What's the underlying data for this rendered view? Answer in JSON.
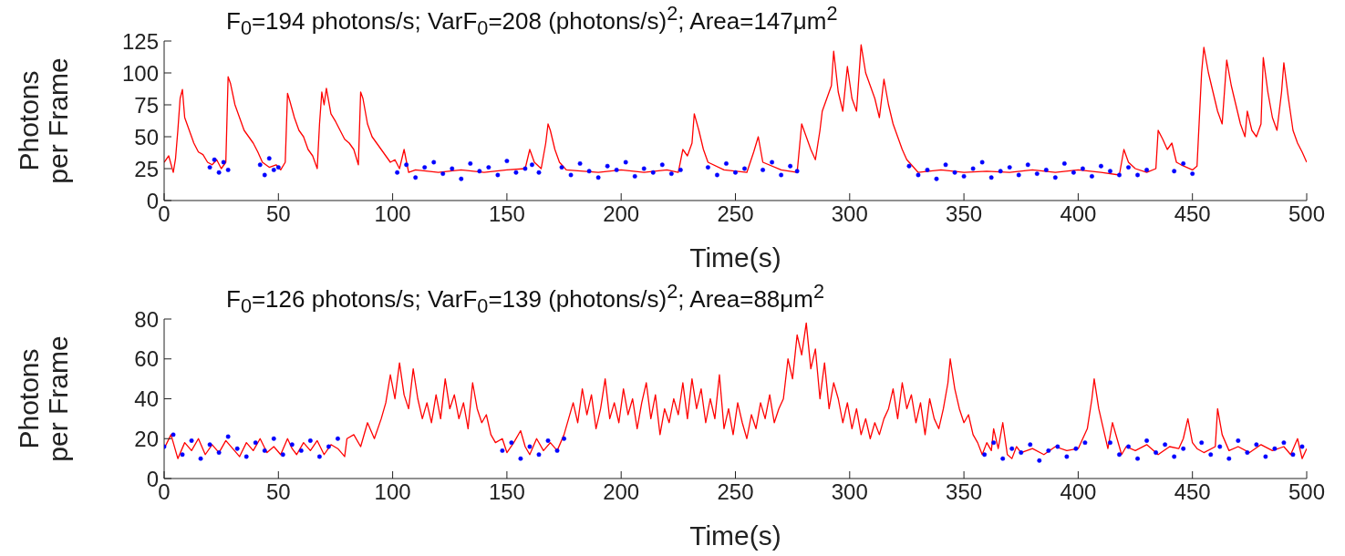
{
  "chart_data": [
    {
      "type": "line",
      "title": "F$_{0}$=194 photons/s; VarF$_{0}$=208 (photons/s)$^{2}$; Area=147μm$^{2}$",
      "xlabel": "Time(s)",
      "ylabel": "Photons per Frame",
      "xlim": [
        0,
        500
      ],
      "xticks": [
        0,
        50,
        100,
        150,
        200,
        250,
        300,
        350,
        400,
        450,
        500
      ],
      "ylim": [
        0,
        125
      ],
      "yticks": [
        0,
        25,
        50,
        75,
        100,
        125
      ],
      "grid": false,
      "series": [
        {
          "type": "line",
          "color": "#ff0000",
          "marker": "none",
          "x": [
            0,
            2,
            4,
            5,
            6,
            7,
            8,
            9,
            11,
            13,
            15,
            17,
            19,
            21,
            23,
            25,
            27,
            28,
            29,
            31,
            33,
            35,
            37,
            39,
            41,
            43,
            46,
            49,
            51,
            53,
            54,
            55,
            57,
            59,
            61,
            63,
            65,
            67,
            68,
            69,
            70,
            71,
            73,
            75,
            77,
            79,
            81,
            83,
            85,
            86,
            87,
            89,
            91,
            93,
            95,
            97,
            99,
            101,
            103,
            105,
            107,
            110,
            120,
            130,
            140,
            150,
            158,
            160,
            162,
            165,
            167,
            168,
            169,
            171,
            173,
            176,
            190,
            200,
            210,
            220,
            225,
            227,
            229,
            231,
            232,
            234,
            236,
            238,
            245,
            255,
            258,
            260,
            262,
            270,
            277,
            279,
            281,
            283,
            285,
            287,
            288,
            290,
            292,
            293,
            295,
            297,
            299,
            301,
            303,
            305,
            307,
            309,
            311,
            313,
            315,
            317,
            319,
            321,
            323,
            325,
            327,
            330,
            340,
            350,
            360,
            370,
            380,
            390,
            400,
            410,
            418,
            420,
            422,
            425,
            430,
            434,
            435,
            437,
            439,
            441,
            443,
            445,
            450,
            452,
            454,
            455,
            457,
            459,
            461,
            463,
            465,
            467,
            469,
            471,
            473,
            474,
            476,
            478,
            480,
            481,
            483,
            485,
            487,
            489,
            490,
            492,
            494,
            496,
            498,
            500
          ],
          "values": [
            30,
            35,
            22,
            33,
            55,
            80,
            87,
            65,
            55,
            45,
            38,
            36,
            30,
            28,
            32,
            25,
            30,
            97,
            92,
            75,
            65,
            55,
            50,
            45,
            38,
            30,
            26,
            28,
            24,
            30,
            84,
            78,
            65,
            55,
            50,
            40,
            35,
            25,
            60,
            85,
            75,
            88,
            68,
            62,
            55,
            48,
            45,
            40,
            28,
            85,
            80,
            60,
            50,
            45,
            40,
            35,
            30,
            32,
            25,
            40,
            22,
            24,
            22,
            24,
            22,
            24,
            25,
            40,
            30,
            25,
            45,
            60,
            55,
            40,
            30,
            24,
            22,
            24,
            22,
            24,
            22,
            40,
            35,
            45,
            68,
            55,
            40,
            30,
            24,
            22,
            38,
            50,
            30,
            24,
            22,
            60,
            50,
            40,
            32,
            55,
            70,
            80,
            90,
            117,
            85,
            70,
            105,
            80,
            70,
            122,
            100,
            90,
            80,
            65,
            95,
            75,
            60,
            50,
            40,
            32,
            28,
            22,
            24,
            22,
            23,
            22,
            24,
            22,
            24,
            22,
            20,
            40,
            30,
            25,
            22,
            25,
            55,
            48,
            40,
            45,
            30,
            28,
            24,
            27,
            100,
            120,
            100,
            85,
            70,
            60,
            110,
            90,
            75,
            60,
            50,
            70,
            55,
            50,
            60,
            112,
            85,
            65,
            55,
            85,
            108,
            80,
            55,
            45,
            38,
            30
          ]
        },
        {
          "type": "scatter",
          "color": "#0000ff",
          "marker": "circle",
          "x": [
            20,
            22,
            24,
            26,
            28,
            42,
            44,
            46,
            48,
            50,
            102,
            106,
            110,
            114,
            118,
            122,
            126,
            130,
            134,
            138,
            142,
            146,
            150,
            154,
            158,
            161,
            164,
            174,
            178,
            182,
            186,
            190,
            194,
            198,
            202,
            206,
            210,
            214,
            218,
            222,
            226,
            238,
            242,
            246,
            250,
            254,
            262,
            266,
            270,
            274,
            277,
            326,
            330,
            334,
            338,
            342,
            346,
            350,
            354,
            358,
            362,
            366,
            370,
            374,
            378,
            382,
            386,
            390,
            394,
            398,
            402,
            406,
            410,
            414,
            418,
            422,
            426,
            430,
            442,
            446,
            450
          ],
          "values": [
            26,
            32,
            22,
            30,
            24,
            28,
            20,
            33,
            24,
            26,
            22,
            28,
            18,
            26,
            30,
            21,
            25,
            17,
            29,
            23,
            26,
            20,
            31,
            22,
            25,
            28,
            22,
            26,
            20,
            29,
            23,
            18,
            27,
            24,
            30,
            19,
            25,
            22,
            28,
            21,
            24,
            26,
            20,
            29,
            22,
            25,
            24,
            30,
            20,
            27,
            23,
            27,
            20,
            24,
            17,
            28,
            22,
            19,
            25,
            30,
            18,
            23,
            26,
            20,
            28,
            21,
            24,
            18,
            29,
            22,
            25,
            19,
            27,
            23,
            20,
            26,
            20,
            24,
            23,
            29,
            21
          ]
        }
      ]
    },
    {
      "type": "line",
      "title": "F$_{0}$=126 photons/s; VarF$_{0}$=139 (photons/s)$^{2}$; Area=88μm$^{2}$",
      "xlabel": "Time(s)",
      "ylabel": "Photons per Frame",
      "xlim": [
        0,
        500
      ],
      "xticks": [
        0,
        50,
        100,
        150,
        200,
        250,
        300,
        350,
        400,
        450,
        500
      ],
      "ylim": [
        0,
        80
      ],
      "yticks": [
        0,
        20,
        40,
        60,
        80
      ],
      "grid": false,
      "series": [
        {
          "type": "line",
          "color": "#ff0000",
          "marker": "none",
          "x": [
            0,
            3,
            6,
            9,
            12,
            15,
            18,
            21,
            24,
            27,
            30,
            33,
            36,
            39,
            42,
            45,
            48,
            51,
            54,
            56,
            58,
            61,
            64,
            67,
            70,
            73,
            76,
            79,
            80,
            83,
            86,
            89,
            92,
            95,
            97,
            99,
            101,
            103,
            105,
            107,
            109,
            111,
            113,
            115,
            117,
            119,
            121,
            123,
            125,
            127,
            129,
            131,
            133,
            135,
            137,
            139,
            141,
            143,
            145,
            148,
            150,
            153,
            156,
            158,
            160,
            163,
            166,
            169,
            172,
            175,
            177,
            179,
            181,
            183,
            185,
            187,
            189,
            191,
            193,
            195,
            197,
            199,
            201,
            203,
            205,
            207,
            209,
            211,
            213,
            215,
            217,
            219,
            221,
            223,
            225,
            227,
            229,
            231,
            233,
            235,
            237,
            239,
            241,
            243,
            245,
            247,
            249,
            251,
            253,
            255,
            257,
            259,
            261,
            263,
            265,
            267,
            269,
            271,
            273,
            275,
            277,
            279,
            281,
            283,
            285,
            287,
            289,
            291,
            293,
            295,
            297,
            299,
            301,
            303,
            305,
            307,
            309,
            311,
            313,
            315,
            317,
            319,
            321,
            323,
            325,
            327,
            329,
            331,
            333,
            335,
            337,
            339,
            341,
            343,
            344,
            346,
            348,
            350,
            352,
            354,
            356,
            358,
            360,
            362,
            363,
            365,
            367,
            369,
            371,
            373,
            375,
            380,
            385,
            390,
            395,
            400,
            402,
            404,
            406,
            407,
            409,
            411,
            413,
            415,
            417,
            419,
            421,
            425,
            430,
            435,
            440,
            444,
            446,
            448,
            450,
            452,
            455,
            460,
            461,
            463,
            466,
            470,
            475,
            480,
            485,
            490,
            493,
            496,
            498,
            500
          ],
          "values": [
            15,
            22,
            10,
            18,
            14,
            20,
            12,
            17,
            13,
            19,
            15,
            11,
            18,
            14,
            20,
            13,
            16,
            12,
            20,
            15,
            12,
            18,
            14,
            19,
            12,
            17,
            15,
            11,
            20,
            22,
            16,
            28,
            20,
            30,
            38,
            52,
            40,
            58,
            42,
            35,
            55,
            40,
            30,
            38,
            28,
            42,
            30,
            50,
            35,
            42,
            30,
            38,
            25,
            48,
            35,
            28,
            32,
            22,
            18,
            20,
            13,
            18,
            24,
            16,
            12,
            20,
            14,
            18,
            14,
            22,
            30,
            38,
            28,
            45,
            32,
            42,
            25,
            35,
            50,
            30,
            38,
            28,
            45,
            32,
            40,
            25,
            38,
            48,
            30,
            42,
            22,
            35,
            28,
            40,
            32,
            48,
            30,
            50,
            35,
            45,
            28,
            40,
            30,
            52,
            25,
            35,
            22,
            38,
            28,
            20,
            32,
            25,
            38,
            30,
            42,
            28,
            35,
            40,
            60,
            50,
            72,
            62,
            78,
            55,
            65,
            40,
            58,
            35,
            48,
            40,
            28,
            38,
            25,
            35,
            22,
            30,
            20,
            28,
            22,
            30,
            35,
            45,
            30,
            48,
            35,
            42,
            28,
            38,
            22,
            40,
            30,
            25,
            35,
            48,
            60,
            45,
            35,
            28,
            32,
            22,
            18,
            12,
            18,
            14,
            25,
            15,
            28,
            12,
            10,
            16,
            13,
            15,
            12,
            16,
            14,
            15,
            20,
            25,
            40,
            50,
            35,
            25,
            15,
            28,
            20,
            12,
            16,
            14,
            17,
            12,
            16,
            15,
            20,
            30,
            18,
            15,
            13,
            16,
            35,
            22,
            14,
            16,
            13,
            17,
            14,
            16,
            12,
            20,
            10,
            15
          ]
        },
        {
          "type": "scatter",
          "color": "#0000ff",
          "marker": "circle",
          "x": [
            0,
            4,
            8,
            12,
            16,
            20,
            24,
            28,
            32,
            36,
            40,
            44,
            48,
            52,
            56,
            60,
            64,
            68,
            72,
            76,
            148,
            152,
            156,
            160,
            164,
            168,
            172,
            175,
            359,
            363,
            367,
            371,
            375,
            379,
            383,
            387,
            391,
            395,
            399,
            403,
            414,
            418,
            422,
            426,
            430,
            434,
            438,
            442,
            446,
            454,
            458,
            462,
            466,
            470,
            474,
            478,
            482,
            486,
            490,
            494,
            498
          ],
          "values": [
            16,
            22,
            12,
            19,
            10,
            17,
            13,
            21,
            15,
            11,
            18,
            14,
            20,
            12,
            17,
            14,
            19,
            11,
            16,
            20,
            14,
            18,
            10,
            16,
            12,
            19,
            14,
            20,
            12,
            18,
            10,
            15,
            13,
            17,
            9,
            14,
            16,
            11,
            15,
            18,
            18,
            12,
            16,
            10,
            19,
            13,
            17,
            11,
            15,
            18,
            12,
            16,
            10,
            19,
            13,
            17,
            11,
            15,
            18,
            12,
            16
          ]
        }
      ]
    }
  ]
}
